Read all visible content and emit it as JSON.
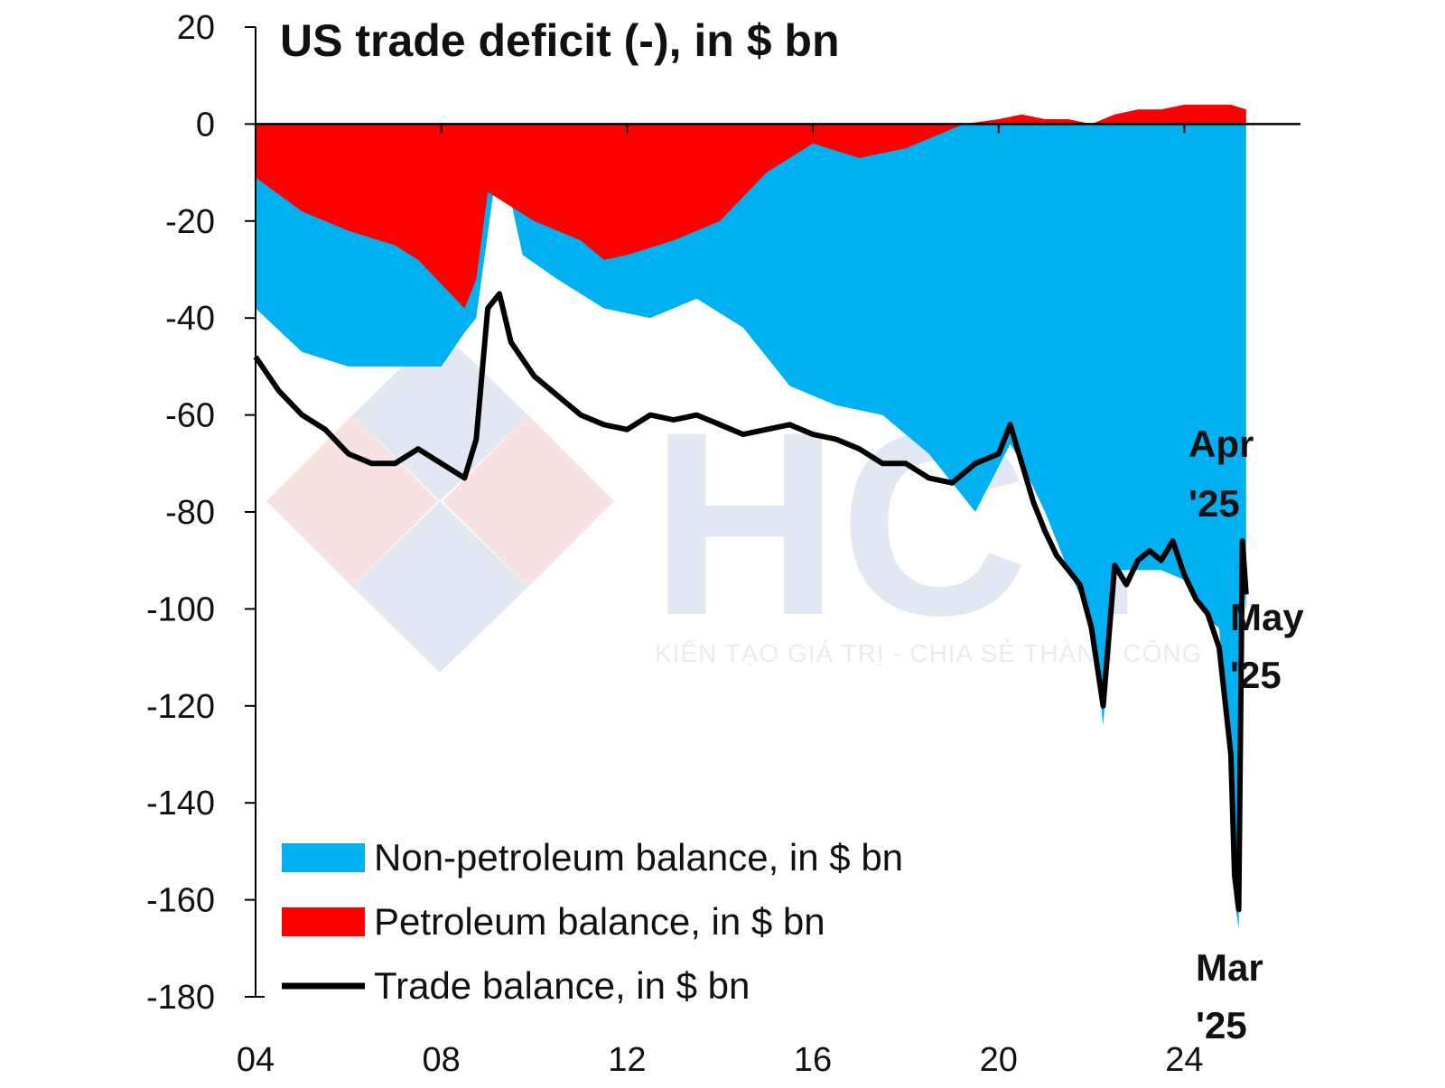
{
  "watermark": {
    "brand": "HCT",
    "tagline": "KIẾN TẠO GIÁ TRỊ - CHIA SẺ THÀNH CÔNG"
  },
  "chart_data": {
    "type": "area",
    "title": "US trade deficit (-), in $ bn",
    "xlabel": "",
    "ylabel": "",
    "xlim": [
      2004,
      2026.5
    ],
    "ylim": [
      -180,
      20
    ],
    "x_ticks": [
      "04",
      "08",
      "12",
      "16",
      "20",
      "24"
    ],
    "y_ticks": [
      "20",
      "0",
      "-20",
      "-40",
      "-60",
      "-80",
      "-100",
      "-120",
      "-140",
      "-160",
      "-180"
    ],
    "grid": false,
    "legend_position": "bottom-left",
    "colors": {
      "non_petroleum": "#00b0f0",
      "petroleum": "#ff0000",
      "trade": "#000000"
    },
    "series": [
      {
        "name": "Non-petroleum balance, in $ bn",
        "kind": "area",
        "x": [
          2004.0,
          2005.0,
          2006.0,
          2007.0,
          2008.0,
          2008.5,
          2008.75,
          2009.25,
          2009.75,
          2010.5,
          2011.5,
          2012.5,
          2013.5,
          2014.5,
          2015.5,
          2016.5,
          2017.5,
          2018.5,
          2019.5,
          2020.25,
          2020.5,
          2021.0,
          2021.5,
          2022.0,
          2022.25,
          2022.5,
          2023.0,
          2023.5,
          2024.0,
          2024.5,
          2024.75,
          2025.0,
          2025.08,
          2025.17,
          2025.25,
          2025.33
        ],
        "values": [
          -38,
          -47,
          -50,
          -50,
          -50,
          -43,
          -40,
          -5,
          -27,
          -32,
          -38,
          -40,
          -36,
          -42,
          -54,
          -58,
          -60,
          -68,
          -80,
          -66,
          -70,
          -80,
          -92,
          -102,
          -124,
          -92,
          -92,
          -92,
          -94,
          -102,
          -104,
          -134,
          -160,
          -166,
          -90,
          -101
        ]
      },
      {
        "name": "Petroleum balance, in $ bn",
        "kind": "area",
        "x": [
          2004.0,
          2005.0,
          2006.0,
          2007.0,
          2007.5,
          2008.0,
          2008.5,
          2008.75,
          2009.0,
          2009.5,
          2010.0,
          2011.0,
          2011.5,
          2012.0,
          2013.0,
          2014.0,
          2015.0,
          2016.0,
          2017.0,
          2018.0,
          2018.75,
          2019.25,
          2020.0,
          2020.5,
          2021.0,
          2021.5,
          2022.0,
          2022.5,
          2023.0,
          2023.5,
          2024.0,
          2024.5,
          2025.0,
          2025.33
        ],
        "values": [
          -11,
          -18,
          -22,
          -25,
          -28,
          -33,
          -38,
          -32,
          -14,
          -17,
          -20,
          -24,
          -28,
          -27,
          -24,
          -20,
          -10,
          -4,
          -7,
          -5,
          -2,
          0,
          1,
          2,
          1,
          1,
          0,
          2,
          3,
          3,
          4,
          4,
          4,
          3
        ]
      },
      {
        "name": "Trade balance, in $ bn",
        "kind": "line",
        "x": [
          2004.0,
          2004.5,
          2005.0,
          2005.5,
          2006.0,
          2006.5,
          2007.0,
          2007.5,
          2008.0,
          2008.5,
          2008.75,
          2009.0,
          2009.25,
          2009.5,
          2010.0,
          2010.5,
          2011.0,
          2011.5,
          2012.0,
          2012.5,
          2013.0,
          2013.5,
          2014.0,
          2014.5,
          2015.0,
          2015.5,
          2016.0,
          2016.5,
          2017.0,
          2017.5,
          2018.0,
          2018.5,
          2019.0,
          2019.5,
          2020.0,
          2020.25,
          2020.5,
          2020.75,
          2021.0,
          2021.25,
          2021.5,
          2021.75,
          2022.0,
          2022.25,
          2022.5,
          2022.75,
          2023.0,
          2023.25,
          2023.5,
          2023.75,
          2024.0,
          2024.25,
          2024.5,
          2024.75,
          2025.0,
          2025.08,
          2025.17,
          2025.25,
          2025.33
        ],
        "values": [
          -48,
          -55,
          -60,
          -63,
          -68,
          -70,
          -70,
          -67,
          -70,
          -73,
          -65,
          -38,
          -35,
          -45,
          -52,
          -56,
          -60,
          -62,
          -63,
          -60,
          -61,
          -60,
          -62,
          -64,
          -63,
          -62,
          -64,
          -65,
          -67,
          -70,
          -70,
          -73,
          -74,
          -70,
          -68,
          -62,
          -70,
          -78,
          -84,
          -89,
          -92,
          -95,
          -104,
          -120,
          -91,
          -95,
          -90,
          -88,
          -90,
          -86,
          -93,
          -98,
          -101,
          -108,
          -130,
          -155,
          -162,
          -86,
          -97
        ]
      }
    ],
    "annotations": [
      {
        "text_1": "Apr",
        "text_2": "'25"
      },
      {
        "text_1": "May",
        "text_2": "'25"
      },
      {
        "text_1": "Mar",
        "text_2": "'25"
      }
    ]
  }
}
